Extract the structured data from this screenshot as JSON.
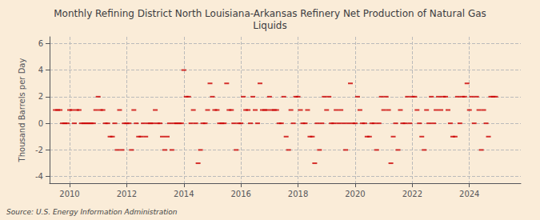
{
  "chart_data": {
    "type": "scatter",
    "title": "Monthly Refining District North Louisiana-Arkansas Refinery Net Production of Natural Gas\nLiquids",
    "ylabel": "Thousand Barrels per Day",
    "source": "Source: U.S. Energy Information Administration",
    "background_color": "#faecd8",
    "color": "#cc0000",
    "marker": "dash",
    "grid": true,
    "xlim": [
      2009.3,
      2025.8
    ],
    "xticks": [
      2010,
      2012,
      2014,
      2016,
      2018,
      2020,
      2022,
      2024
    ],
    "ylim": [
      -4.5,
      6.5
    ],
    "yticks": [
      -4,
      -2,
      0,
      2,
      4,
      6
    ],
    "x": [
      2009.5,
      2009.583,
      2009.667,
      2009.75,
      2009.833,
      2009.917,
      2010.0,
      2010.083,
      2010.167,
      2010.25,
      2010.333,
      2010.417,
      2010.5,
      2010.583,
      2010.667,
      2010.75,
      2010.833,
      2010.917,
      2011.0,
      2011.083,
      2011.167,
      2011.25,
      2011.333,
      2011.417,
      2011.5,
      2011.583,
      2011.667,
      2011.75,
      2011.833,
      2011.917,
      2012.0,
      2012.083,
      2012.167,
      2012.25,
      2012.333,
      2012.417,
      2012.5,
      2012.583,
      2012.667,
      2012.75,
      2012.833,
      2012.917,
      2013.0,
      2013.083,
      2013.167,
      2013.25,
      2013.333,
      2013.417,
      2013.5,
      2013.583,
      2013.667,
      2013.75,
      2013.833,
      2013.917,
      2014.0,
      2014.083,
      2014.167,
      2014.25,
      2014.333,
      2014.417,
      2014.5,
      2014.583,
      2014.667,
      2014.75,
      2014.833,
      2014.917,
      2015.0,
      2015.083,
      2015.167,
      2015.25,
      2015.333,
      2015.417,
      2015.5,
      2015.583,
      2015.667,
      2015.75,
      2015.833,
      2015.917,
      2016.0,
      2016.083,
      2016.167,
      2016.25,
      2016.333,
      2016.417,
      2016.5,
      2016.583,
      2016.667,
      2016.75,
      2016.833,
      2016.917,
      2017.0,
      2017.083,
      2017.167,
      2017.25,
      2017.333,
      2017.417,
      2017.5,
      2017.583,
      2017.667,
      2017.75,
      2017.833,
      2017.917,
      2018.0,
      2018.083,
      2018.167,
      2018.25,
      2018.333,
      2018.417,
      2018.5,
      2018.583,
      2018.667,
      2018.75,
      2018.833,
      2018.917,
      2019.0,
      2019.083,
      2019.167,
      2019.25,
      2019.333,
      2019.417,
      2019.5,
      2019.583,
      2019.667,
      2019.75,
      2019.833,
      2019.917,
      2020.0,
      2020.083,
      2020.167,
      2020.25,
      2020.333,
      2020.417,
      2020.5,
      2020.583,
      2020.667,
      2020.75,
      2020.833,
      2020.917,
      2021.0,
      2021.083,
      2021.167,
      2021.25,
      2021.333,
      2021.417,
      2021.5,
      2021.583,
      2021.667,
      2021.75,
      2021.833,
      2021.917,
      2022.0,
      2022.083,
      2022.167,
      2022.25,
      2022.333,
      2022.417,
      2022.5,
      2022.583,
      2022.667,
      2022.75,
      2022.833,
      2022.917,
      2023.0,
      2023.083,
      2023.167,
      2023.25,
      2023.333,
      2023.417,
      2023.5,
      2023.583,
      2023.667,
      2023.75,
      2023.833,
      2023.917,
      2024.0,
      2024.083,
      2024.167,
      2024.25,
      2024.333,
      2024.417,
      2024.5,
      2024.583,
      2024.667,
      2024.75,
      2024.833,
      2024.917
    ],
    "values": [
      1,
      1,
      1,
      0,
      0,
      0,
      1,
      1,
      0,
      1,
      1,
      0,
      0,
      0,
      0,
      0,
      0,
      1,
      2,
      1,
      1,
      0,
      0,
      -1,
      -1,
      0,
      -2,
      1,
      -2,
      0,
      0,
      0,
      -2,
      1,
      0,
      -1,
      -1,
      0,
      -1,
      0,
      0,
      0,
      1,
      0,
      0,
      -1,
      -2,
      -1,
      0,
      -2,
      0,
      0,
      0,
      0,
      4,
      2,
      2,
      0,
      1,
      0,
      -3,
      -2,
      0,
      0,
      1,
      3,
      2,
      1,
      1,
      0,
      0,
      0,
      3,
      1,
      1,
      0,
      -2,
      0,
      0,
      2,
      1,
      1,
      0,
      2,
      1,
      0,
      3,
      1,
      1,
      1,
      2,
      1,
      1,
      1,
      0,
      0,
      2,
      -1,
      -2,
      1,
      0,
      2,
      2,
      1,
      0,
      0,
      1,
      -1,
      -1,
      -3,
      0,
      -2,
      0,
      2,
      1,
      2,
      0,
      0,
      1,
      0,
      1,
      0,
      -2,
      0,
      3,
      0,
      0,
      2,
      1,
      0,
      0,
      -1,
      -1,
      0,
      0,
      -2,
      0,
      2,
      1,
      2,
      1,
      -3,
      -1,
      0,
      -2,
      1,
      0,
      0,
      2,
      0,
      2,
      2,
      1,
      0,
      -1,
      -2,
      1,
      0,
      2,
      0,
      1,
      2,
      1,
      2,
      2,
      1,
      0,
      -1,
      -1,
      2,
      0,
      2,
      2,
      3,
      1,
      2,
      0,
      2,
      1,
      -2,
      1,
      0,
      -1,
      2,
      2,
      2
    ]
  }
}
